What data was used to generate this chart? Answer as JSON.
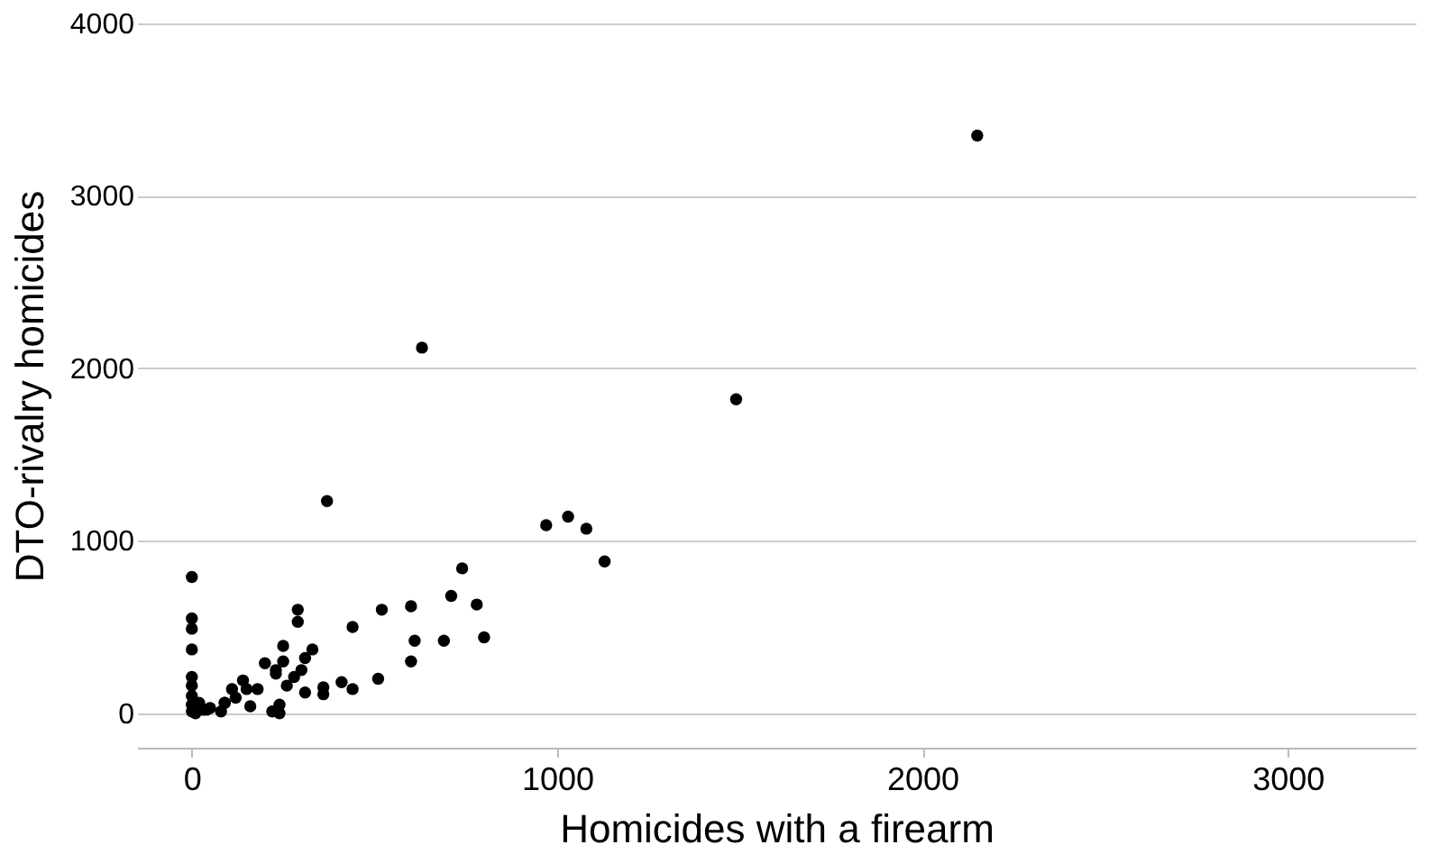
{
  "chart_data": {
    "type": "scatter",
    "xlabel": "Homicides with a firearm",
    "ylabel": "DTO-rivalry homicides",
    "x": [
      2150,
      630,
      1490,
      370,
      970,
      1030,
      1080,
      1130,
      740,
      710,
      780,
      800,
      690,
      610,
      600,
      600,
      520,
      510,
      440,
      440,
      410,
      360,
      290,
      290,
      330,
      310,
      300,
      250,
      250,
      260,
      240,
      220,
      200,
      230,
      180,
      140,
      110,
      90,
      0,
      0,
      0,
      0,
      0,
      0,
      0,
      0,
      0,
      230,
      310,
      360,
      150,
      90,
      40,
      160,
      10,
      80,
      280,
      240,
      50,
      120,
      30,
      20
    ],
    "values": [
      3350,
      2120,
      1820,
      1230,
      1090,
      1140,
      1070,
      880,
      840,
      680,
      630,
      440,
      420,
      420,
      620,
      300,
      600,
      200,
      500,
      140,
      180,
      150,
      600,
      530,
      370,
      320,
      250,
      390,
      300,
      160,
      50,
      10,
      290,
      230,
      140,
      190,
      140,
      60,
      790,
      550,
      490,
      370,
      210,
      160,
      100,
      50,
      10,
      250,
      120,
      110,
      140,
      60,
      20,
      40,
      0,
      10,
      210,
      0,
      30,
      90,
      20,
      60
    ],
    "color": "#000000",
    "xlim": [
      -150,
      3350
    ],
    "ylim": [
      -200,
      4000
    ],
    "xticks": [
      0,
      1000,
      2000,
      3000
    ],
    "yticks": [
      0,
      1000,
      2000,
      3000,
      4000
    ],
    "grid": "y"
  }
}
